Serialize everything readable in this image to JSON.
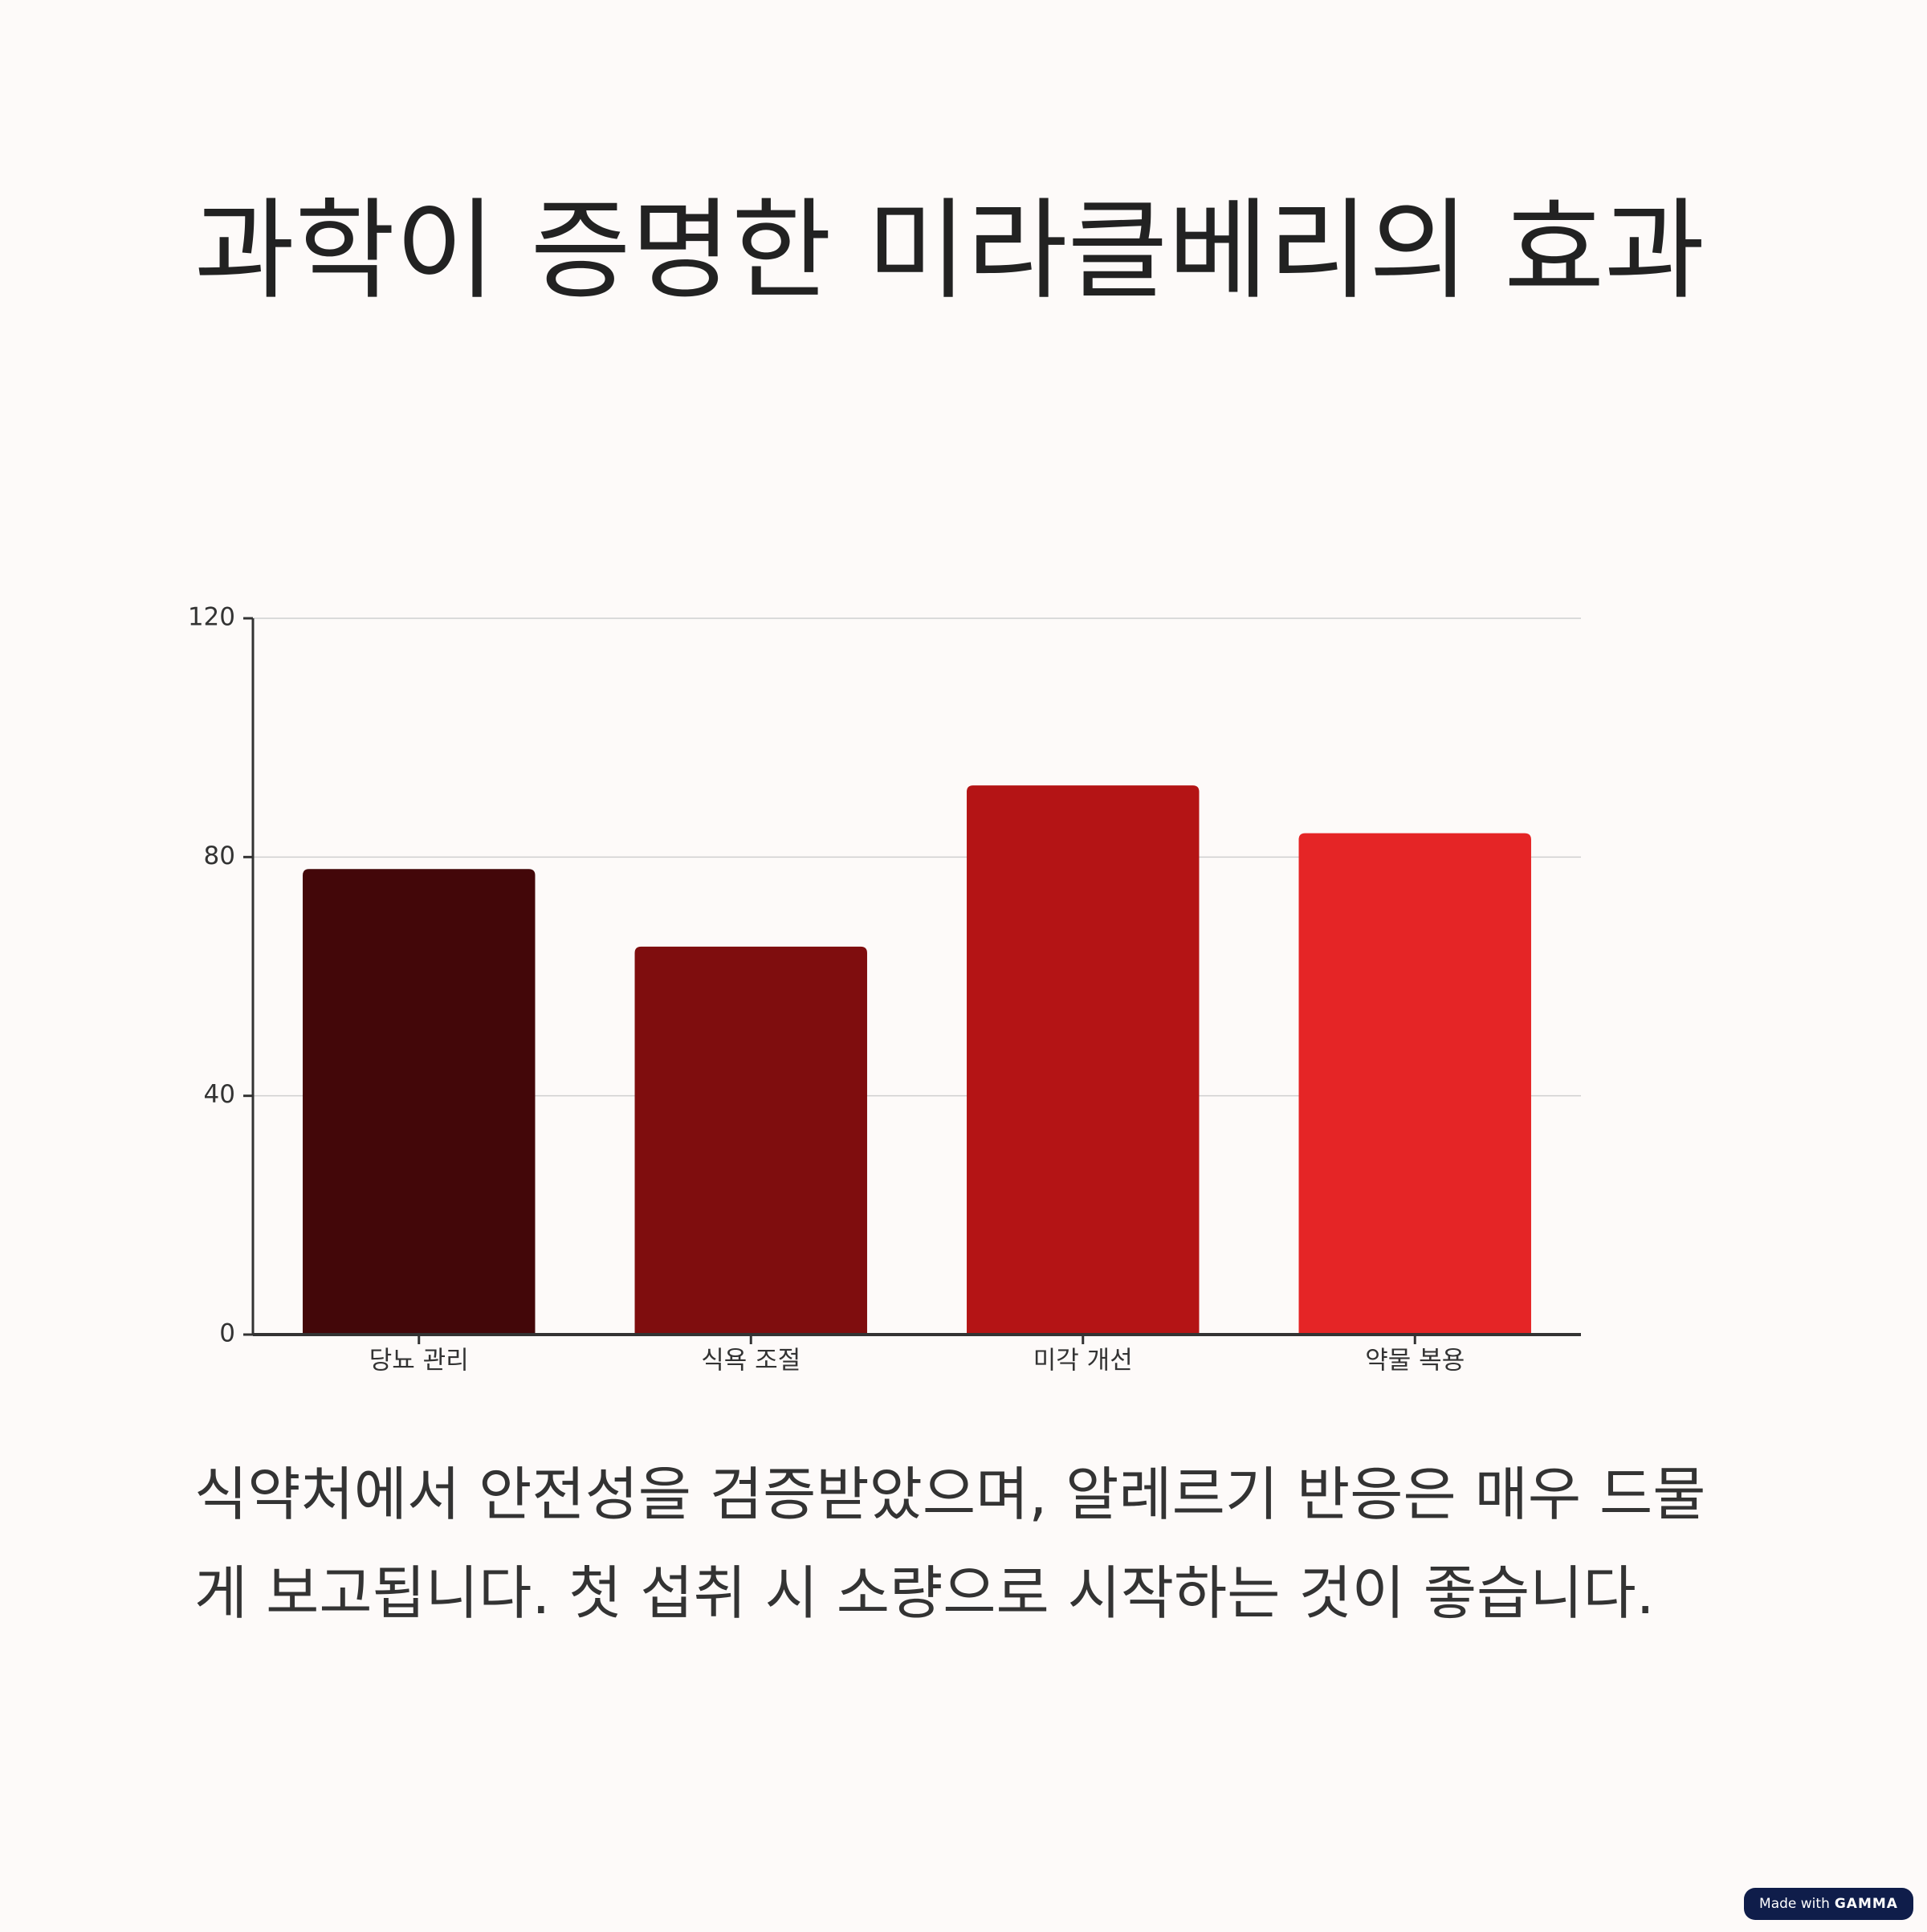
{
  "title": "과학이 증명한 미라클베리의 효과",
  "chart_data": {
    "type": "bar",
    "categories": [
      "당뇨 관리",
      "식욕 조절",
      "미각 개선",
      "약물 복용"
    ],
    "values": [
      78,
      65,
      92,
      84
    ],
    "colors": [
      "#430709",
      "#7f0d0e",
      "#b41415",
      "#e52526"
    ],
    "ylim": [
      0,
      120
    ],
    "yticks": [
      0,
      40,
      80,
      120
    ],
    "grid": true
  },
  "body": "식약처에서 안전성을 검증받았으며, 알레르기 반응은 매우 드물게 보고됩니다. 첫 섭취 시 소량으로 시작하는 것이 좋습니다.",
  "badge": {
    "prefix": "Made with",
    "brand": "GAMMA"
  }
}
